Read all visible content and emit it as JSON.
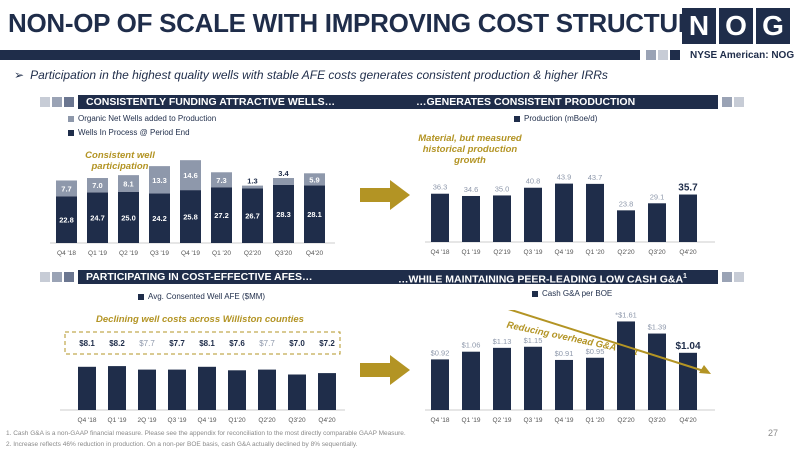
{
  "title": "NON-OP OF SCALE WITH IMPROVING COST STRUCTURE",
  "logo": [
    "N",
    "O",
    "G"
  ],
  "exchange": "NYSE American: NOG",
  "subtitle": "Participation in the highest quality wells with stable AFE costs generates consistent production & higher IRRs",
  "bands": {
    "tl": "CONSISTENTLY FUNDING ATTRACTIVE WELLS…",
    "tr": "…GENERATES CONSISTENT PRODUCTION",
    "bl": "PARTICIPATING IN COST-EFFECTIVE AFES…",
    "br": "…WHILE MAINTAINING PEER-LEADING LOW CASH G&A"
  },
  "band_br_sup": "1",
  "legends": {
    "tl_1": "Organic Net Wells added to Production",
    "tl_2": "Wells In Process @ Period End",
    "tr": "Production (mBoe/d)",
    "bl": "Avg. Consented Well AFE ($MM)",
    "br": "Cash G&A per BOE"
  },
  "notes": {
    "tl": "Consistent well participation",
    "tr": "Material, but measured historical production growth",
    "bl": "Declining well costs across Williston counties",
    "br": "Reducing overhead G&A cost",
    "br_star": "*",
    "br_sup": "2"
  },
  "colors": {
    "navy": "#1f2d4a",
    "gray": "#8e98ab",
    "gold": "#b39424",
    "light": "#c7ccd6"
  },
  "chart_data": [
    {
      "type": "bar",
      "categories": [
        "Q4 '18",
        "Q1 '19",
        "Q2 '19",
        "Q3 '19",
        "Q4 '19",
        "Q1 '20",
        "Q2'20",
        "Q3'20",
        "Q4'20"
      ],
      "series": [
        {
          "name": "Wells In Process @ Period End",
          "values": [
            22.8,
            24.7,
            25.0,
            24.2,
            25.8,
            27.2,
            26.7,
            28.3,
            28.1
          ]
        },
        {
          "name": "Organic Net Wells added to Production",
          "values": [
            7.7,
            7.0,
            8.1,
            13.3,
            14.6,
            7.3,
            1.3,
            3.4,
            5.9
          ]
        }
      ],
      "stacked": true
    },
    {
      "type": "bar",
      "categories": [
        "Q4 '18",
        "Q1 '19",
        "Q2'19",
        "Q3 '19",
        "Q4 '19",
        "Q1 '20",
        "Q2'20",
        "Q3'20",
        "Q4'20"
      ],
      "series": [
        {
          "name": "Production (mBoe/d)",
          "values": [
            36.3,
            34.6,
            35.0,
            40.8,
            43.9,
            43.7,
            23.8,
            29.1,
            35.7
          ]
        }
      ]
    },
    {
      "type": "bar",
      "categories": [
        "Q4 '18",
        "Q1 '19",
        "2Q '19",
        "Q3 '19",
        "Q4 '19",
        "Q1'20",
        "Q2'20",
        "Q3'20",
        "Q4'20"
      ],
      "series": [
        {
          "name": "Avg. Consented Well AFE ($MM)",
          "values": [
            8.1,
            8.2,
            7.7,
            7.7,
            8.1,
            7.6,
            7.7,
            7.0,
            7.2
          ]
        }
      ],
      "labels": [
        "$8.1",
        "$8.2",
        "$7.7",
        "$7.7",
        "$8.1",
        "$7.6",
        "$7.7",
        "$7.0",
        "$7.2"
      ]
    },
    {
      "type": "bar",
      "categories": [
        "Q4 '18",
        "Q1 '19",
        "Q2 '19",
        "Q3 '19",
        "Q4 '19",
        "Q1 '20",
        "Q2'20",
        "Q3'20",
        "Q4'20"
      ],
      "series": [
        {
          "name": "Cash G&A per BOE",
          "values": [
            0.92,
            1.06,
            1.13,
            1.15,
            0.91,
            0.95,
            1.61,
            1.39,
            1.04
          ]
        }
      ],
      "labels": [
        "$0.92",
        "$1.06",
        "$1.13",
        "$1.15",
        "$0.91",
        "$0.95",
        "$1.61",
        "$1.39",
        "$1.04"
      ]
    }
  ],
  "footnotes": [
    "1. Cash G&A is a non-GAAP financial measure.  Please see the appendix for reconciliation to the most directly comparable GAAP Measure.",
    "2. Increase reflects 46% reduction in production. On a non-per BOE basis, cash G&A actually declined by 8% sequentially."
  ],
  "page_number": "27"
}
